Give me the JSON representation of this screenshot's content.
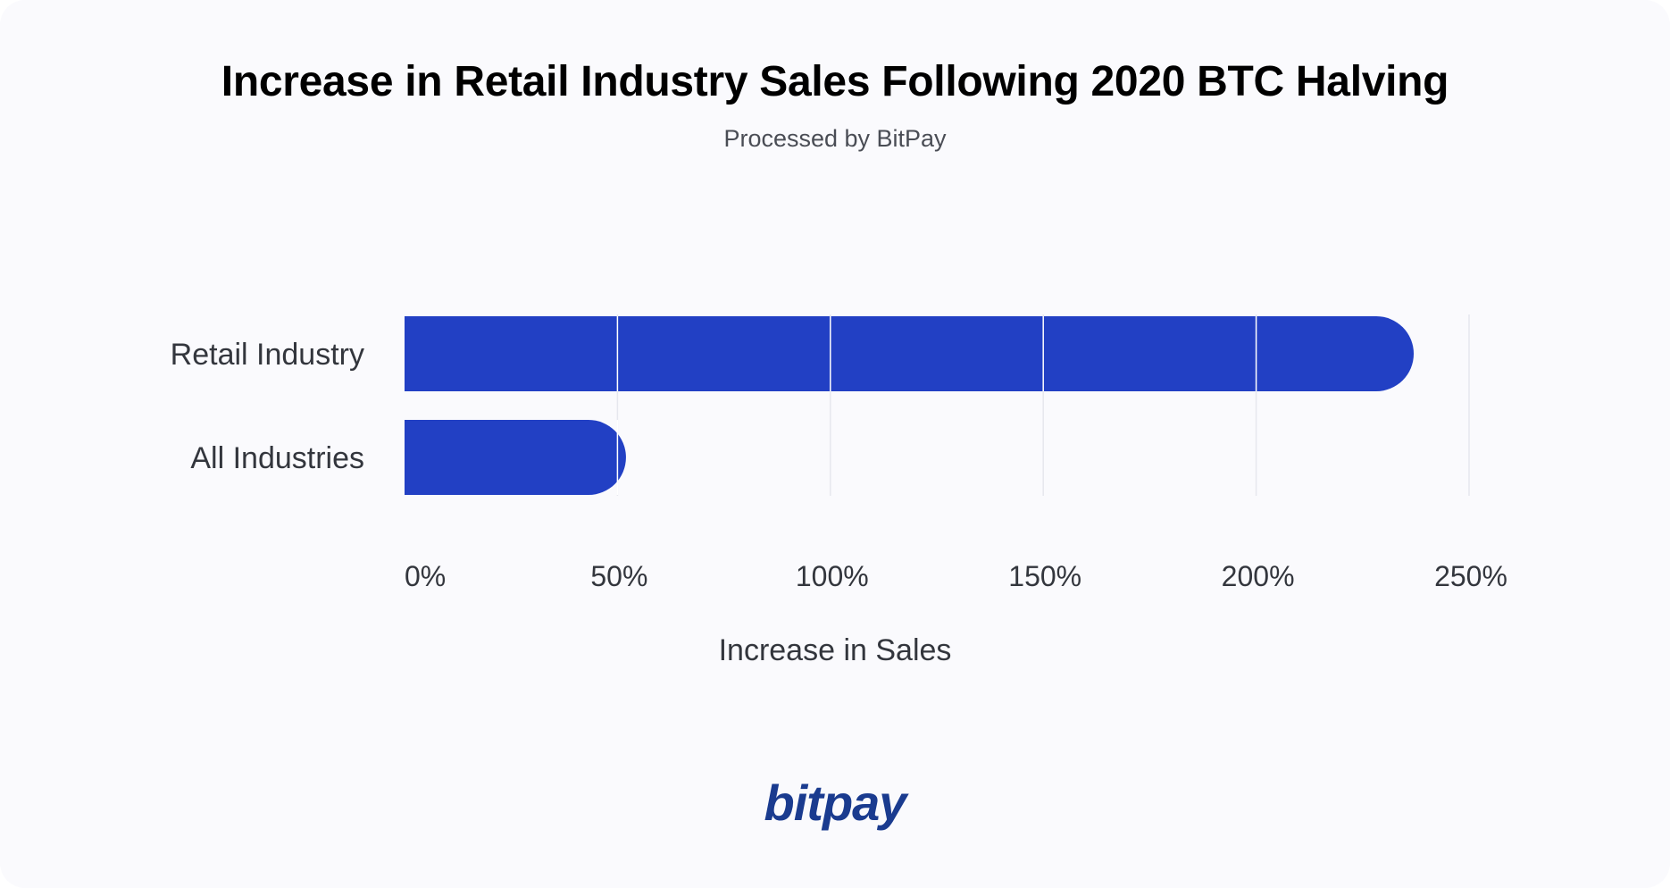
{
  "chart_data": {
    "type": "bar",
    "orientation": "horizontal",
    "title": "Increase in Retail Industry Sales Following 2020 BTC Halving",
    "subtitle": "Processed by BitPay",
    "categories": [
      "Retail Industry",
      "All Industries"
    ],
    "values": [
      237,
      52
    ],
    "xlabel": "Increase in Sales",
    "ylabel": "",
    "xlim": [
      0,
      250
    ],
    "ticks": [
      0,
      50,
      100,
      150,
      200,
      250
    ],
    "tick_labels": [
      "0%",
      "50%",
      "100%",
      "150%",
      "200%",
      "250%"
    ],
    "grid": true,
    "bar_color": "#2240c4",
    "grid_color": "#e6e7ee"
  },
  "brand": {
    "logo_text": "bitpay",
    "logo_color": "#1a3b8f"
  }
}
